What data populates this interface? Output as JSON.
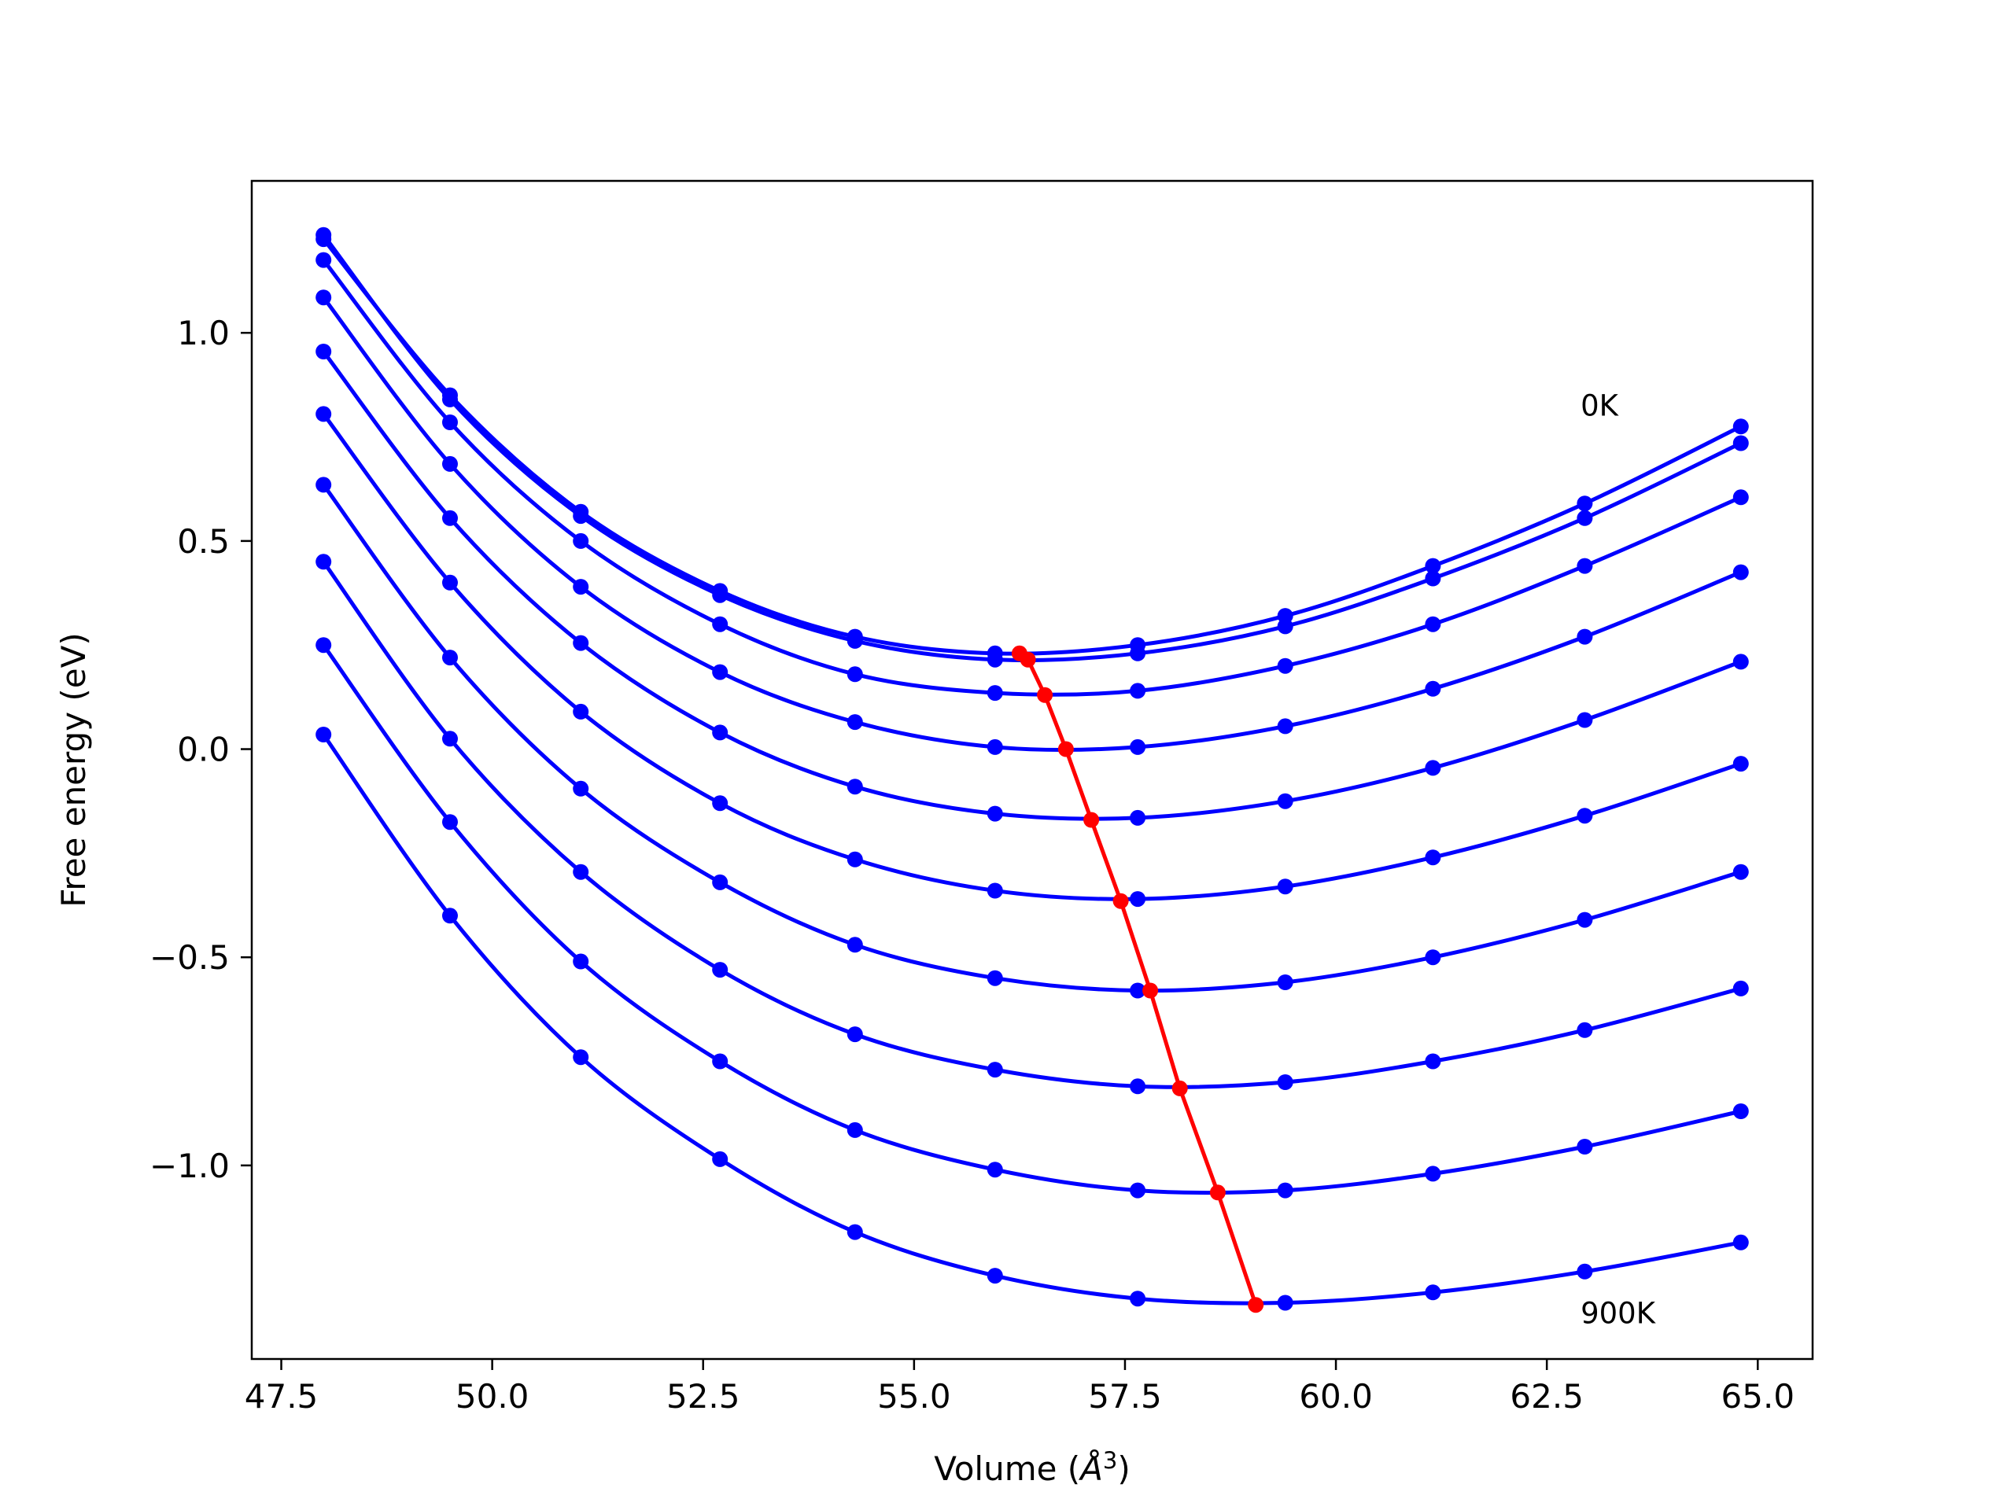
{
  "chart_data": {
    "type": "line",
    "title": "",
    "xlabel": "Volume (",
    "xlabel_symbol": "Å",
    "xlabel_exp": "3",
    "xlabel_close": ")",
    "ylabel": "Free energy (eV)",
    "xlim": [
      47.15,
      65.65
    ],
    "ylim": [
      -1.465,
      1.365
    ],
    "xticks": [
      47.5,
      50.0,
      52.5,
      55.0,
      57.5,
      60.0,
      62.5,
      65.0
    ],
    "xtick_labels": [
      "47.5",
      "50.0",
      "52.5",
      "55.0",
      "57.5",
      "60.0",
      "62.5",
      "65.0"
    ],
    "yticks": [
      1.0,
      0.5,
      0.0,
      -0.5,
      -1.0
    ],
    "ytick_labels": [
      "1.0",
      "0.5",
      "0.0",
      "−0.5",
      "−1.0"
    ],
    "grid": false,
    "annotations": [
      {
        "text": "0K",
        "x": 62.9,
        "y": 0.82
      },
      {
        "text": "900K",
        "x": 62.9,
        "y": -1.36
      }
    ],
    "series_color": "#0000ff",
    "minimum_line_color": "#ff0000",
    "x": [
      48.0,
      49.5,
      51.05,
      52.7,
      54.3,
      55.96,
      57.65,
      59.4,
      61.15,
      62.95,
      64.8
    ],
    "series": [
      {
        "values": [
          1.225,
          0.85,
          0.57,
          0.38,
          0.27,
          0.23,
          0.25,
          0.32,
          0.44,
          0.59,
          0.775
        ]
      },
      {
        "values": [
          1.235,
          0.84,
          0.56,
          0.37,
          0.26,
          0.215,
          0.23,
          0.295,
          0.41,
          0.555,
          0.735
        ]
      },
      {
        "values": [
          1.175,
          0.785,
          0.5,
          0.3,
          0.18,
          0.135,
          0.14,
          0.2,
          0.3,
          0.44,
          0.605
        ]
      },
      {
        "values": [
          1.085,
          0.685,
          0.39,
          0.185,
          0.065,
          0.005,
          0.005,
          0.055,
          0.145,
          0.27,
          0.425
        ]
      },
      {
        "values": [
          0.955,
          0.555,
          0.255,
          0.04,
          -0.09,
          -0.155,
          -0.165,
          -0.125,
          -0.045,
          0.07,
          0.21
        ]
      },
      {
        "values": [
          0.805,
          0.4,
          0.09,
          -0.13,
          -0.265,
          -0.34,
          -0.36,
          -0.33,
          -0.26,
          -0.16,
          -0.035
        ]
      },
      {
        "values": [
          0.635,
          0.22,
          -0.095,
          -0.32,
          -0.47,
          -0.55,
          -0.58,
          -0.56,
          -0.5,
          -0.41,
          -0.295
        ]
      },
      {
        "values": [
          0.45,
          0.025,
          -0.295,
          -0.53,
          -0.685,
          -0.77,
          -0.81,
          -0.8,
          -0.75,
          -0.675,
          -0.575
        ]
      },
      {
        "values": [
          0.25,
          -0.175,
          -0.51,
          -0.75,
          -0.915,
          -1.01,
          -1.06,
          -1.06,
          -1.02,
          -0.955,
          -0.87
        ]
      },
      {
        "values": [
          0.035,
          -0.4,
          -0.74,
          -0.985,
          -1.16,
          -1.265,
          -1.32,
          -1.33,
          -1.305,
          -1.255,
          -1.185
        ]
      }
    ],
    "minimum_line": {
      "x": [
        56.25,
        56.35,
        56.55,
        56.8,
        57.1,
        57.45,
        57.8,
        58.15,
        58.6,
        59.05
      ],
      "y": [
        0.23,
        0.215,
        0.13,
        0.0,
        -0.17,
        -0.365,
        -0.58,
        -0.815,
        -1.065,
        -1.335
      ]
    }
  }
}
